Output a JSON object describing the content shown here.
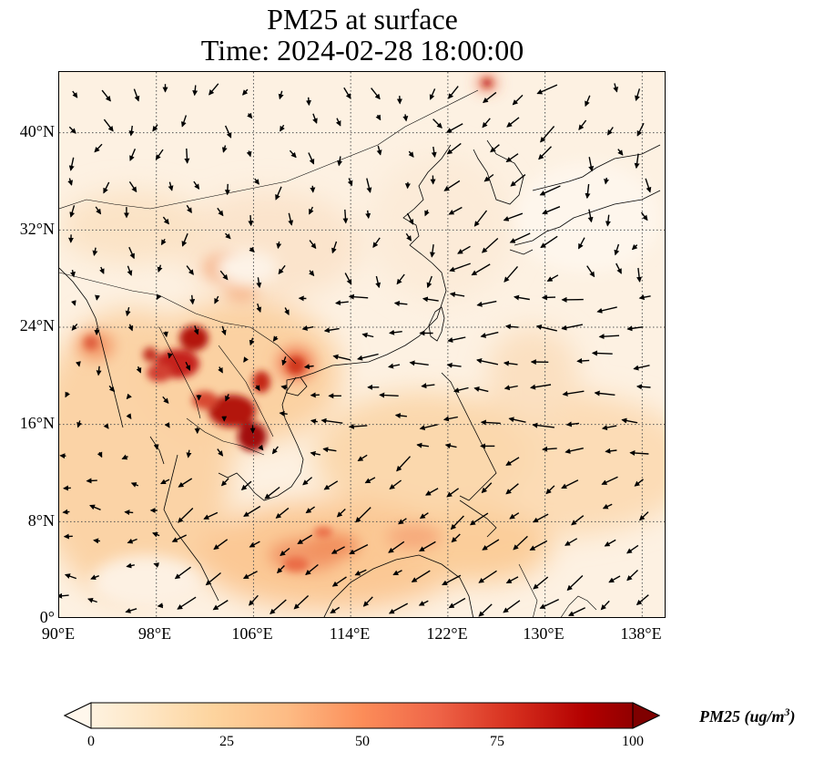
{
  "title": {
    "line1": "PM25 at surface",
    "line2": "Time: 2024-02-28 18:00:00"
  },
  "map": {
    "lon_range": [
      90,
      140
    ],
    "lat_range": [
      0,
      45
    ],
    "lon_ticks": [
      "90°E",
      "98°E",
      "106°E",
      "114°E",
      "122°E",
      "130°E",
      "138°E"
    ],
    "lat_ticks": [
      "0°",
      "8°N",
      "16°N",
      "24°N",
      "32°N",
      "40°N"
    ],
    "gridlines": "dotted",
    "variable": "PM25",
    "vectors": "wind arrows"
  },
  "colorbar": {
    "label": "PM25 (ug/m³)",
    "label_main": "PM25 (ug/m",
    "label_sup": "3",
    "label_end": ")",
    "ticks": [
      "0",
      "25",
      "50",
      "75",
      "100"
    ],
    "range": [
      0,
      100
    ],
    "extend": "both",
    "colormap": "OrRd",
    "colors": [
      "#fff7ec",
      "#fee8c8",
      "#fdd49e",
      "#fdbb84",
      "#fc8d59",
      "#ef6548",
      "#d7301f",
      "#b30000",
      "#7f0000"
    ]
  }
}
